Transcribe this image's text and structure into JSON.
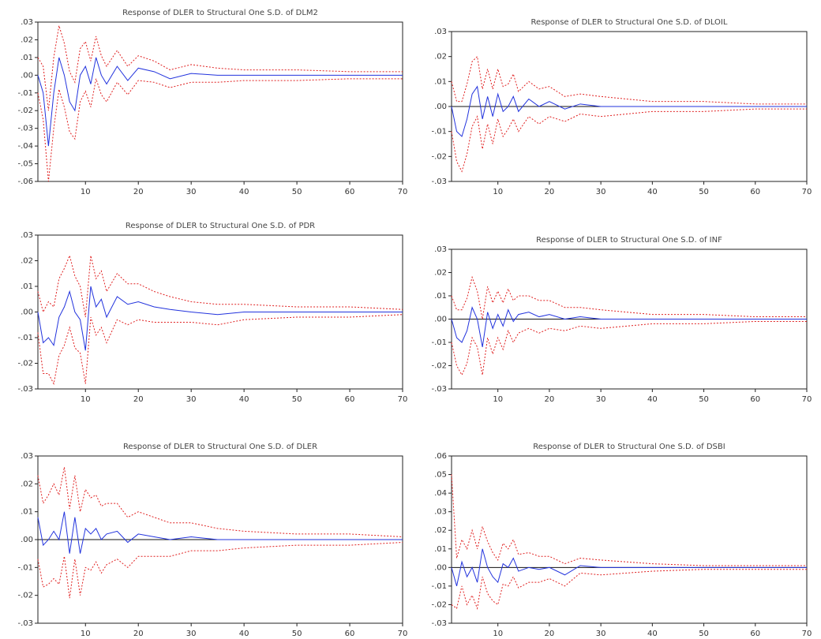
{
  "chart_data": [
    {
      "type": "line",
      "title": "Response of DLER to Structural One S.D. of DLM2",
      "zero_line": false,
      "x": [
        1,
        2,
        3,
        4,
        5,
        6,
        7,
        8,
        9,
        10,
        11,
        12,
        13,
        14,
        16,
        18,
        20,
        23,
        26,
        30,
        35,
        40,
        50,
        60,
        70
      ],
      "xlim": [
        1,
        70
      ],
      "xticks": [
        10,
        20,
        30,
        40,
        50,
        60,
        70
      ],
      "ylim": [
        -0.06,
        0.03
      ],
      "yticks": [
        {
          "value": 0.03,
          "label": ".03"
        },
        {
          "value": 0.02,
          "label": ".02"
        },
        {
          "value": 0.01,
          "label": ".01"
        },
        {
          "value": 0,
          "label": ".00"
        },
        {
          "value": -0.01,
          "label": "-.01"
        },
        {
          "value": -0.02,
          "label": "-.02"
        },
        {
          "value": -0.03,
          "label": "-.03"
        },
        {
          "value": -0.04,
          "label": "-.04"
        },
        {
          "value": -0.05,
          "label": "-.05"
        },
        {
          "value": -0.06,
          "label": "-.06"
        }
      ],
      "series": [
        {
          "color": "#2233dd",
          "dash": false,
          "values": [
            0.0,
            -0.01,
            -0.04,
            -0.01,
            0.01,
            0.0,
            -0.015,
            -0.02,
            0.0,
            0.005,
            -0.005,
            0.01,
            0.0,
            -0.005,
            0.005,
            -0.003,
            0.004,
            0.002,
            -0.002,
            0.001,
            0.0,
            0.0,
            0.0,
            0.0,
            0.0
          ]
        },
        {
          "color": "#e02020",
          "dash": true,
          "values": [
            0.01,
            0.005,
            -0.02,
            0.01,
            0.028,
            0.018,
            0.002,
            -0.004,
            0.015,
            0.019,
            0.008,
            0.022,
            0.011,
            0.005,
            0.014,
            0.005,
            0.011,
            0.008,
            0.003,
            0.006,
            0.004,
            0.003,
            0.003,
            0.002,
            0.002
          ]
        },
        {
          "color": "#e02020",
          "dash": true,
          "values": [
            -0.01,
            -0.025,
            -0.06,
            -0.03,
            -0.008,
            -0.018,
            -0.032,
            -0.036,
            -0.015,
            -0.009,
            -0.018,
            -0.002,
            -0.011,
            -0.015,
            -0.004,
            -0.011,
            -0.003,
            -0.004,
            -0.007,
            -0.004,
            -0.004,
            -0.003,
            -0.003,
            -0.002,
            -0.002
          ]
        }
      ]
    },
    {
      "type": "line",
      "title": "Response of DLER to Structural One S.D. of DLOIL",
      "zero_line": true,
      "x": [
        1,
        2,
        3,
        4,
        5,
        6,
        7,
        8,
        9,
        10,
        11,
        12,
        13,
        14,
        16,
        18,
        20,
        23,
        26,
        30,
        35,
        40,
        50,
        60,
        70
      ],
      "xlim": [
        1,
        70
      ],
      "xticks": [
        10,
        20,
        30,
        40,
        50,
        60,
        70
      ],
      "ylim": [
        -0.03,
        0.03
      ],
      "yticks": [
        {
          "value": 0.03,
          "label": ".03"
        },
        {
          "value": 0.02,
          "label": ".02"
        },
        {
          "value": 0.01,
          "label": ".01"
        },
        {
          "value": 0,
          "label": ".00"
        },
        {
          "value": -0.01,
          "label": "-.01"
        },
        {
          "value": -0.02,
          "label": "-.02"
        },
        {
          "value": -0.03,
          "label": "-.03"
        }
      ],
      "series": [
        {
          "color": "#2233dd",
          "dash": false,
          "values": [
            0.0,
            -0.01,
            -0.012,
            -0.005,
            0.005,
            0.008,
            -0.005,
            0.004,
            -0.004,
            0.005,
            -0.002,
            0.0,
            0.004,
            -0.002,
            0.003,
            0.0,
            0.002,
            -0.001,
            0.001,
            0.0,
            0.0,
            0.0,
            0.0,
            0.0,
            0.0
          ]
        },
        {
          "color": "#e02020",
          "dash": true,
          "values": [
            0.01,
            0.002,
            0.002,
            0.009,
            0.018,
            0.02,
            0.007,
            0.015,
            0.007,
            0.015,
            0.008,
            0.009,
            0.013,
            0.006,
            0.01,
            0.007,
            0.008,
            0.004,
            0.005,
            0.004,
            0.003,
            0.002,
            0.002,
            0.001,
            0.001
          ]
        },
        {
          "color": "#e02020",
          "dash": true,
          "values": [
            -0.01,
            -0.022,
            -0.026,
            -0.019,
            -0.008,
            -0.004,
            -0.017,
            -0.007,
            -0.015,
            -0.005,
            -0.012,
            -0.009,
            -0.005,
            -0.01,
            -0.004,
            -0.007,
            -0.004,
            -0.006,
            -0.003,
            -0.004,
            -0.003,
            -0.002,
            -0.002,
            -0.001,
            -0.001
          ]
        }
      ]
    },
    {
      "type": "line",
      "title": "Response of DLER to Structural One S.D. of PDR",
      "zero_line": false,
      "x": [
        1,
        2,
        3,
        4,
        5,
        6,
        7,
        8,
        9,
        10,
        11,
        12,
        13,
        14,
        16,
        18,
        20,
        23,
        26,
        30,
        35,
        40,
        50,
        60,
        70
      ],
      "xlim": [
        1,
        70
      ],
      "xticks": [
        10,
        20,
        30,
        40,
        50,
        60,
        70
      ],
      "ylim": [
        -0.03,
        0.03
      ],
      "yticks": [
        {
          "value": 0.03,
          "label": ".03"
        },
        {
          "value": 0.02,
          "label": ".02"
        },
        {
          "value": 0.01,
          "label": ".01"
        },
        {
          "value": 0,
          "label": ".00"
        },
        {
          "value": -0.01,
          "label": "-.01"
        },
        {
          "value": -0.02,
          "label": "-.02"
        },
        {
          "value": -0.03,
          "label": "-.03"
        }
      ],
      "series": [
        {
          "color": "#2233dd",
          "dash": false,
          "values": [
            0.0,
            -0.012,
            -0.01,
            -0.013,
            -0.002,
            0.002,
            0.008,
            0.0,
            -0.003,
            -0.015,
            0.01,
            0.002,
            0.005,
            -0.002,
            0.006,
            0.003,
            0.004,
            0.002,
            0.001,
            0.0,
            -0.001,
            0.0,
            0.0,
            0.0,
            0.0
          ]
        },
        {
          "color": "#e02020",
          "dash": true,
          "values": [
            0.008,
            0.0,
            0.004,
            0.002,
            0.013,
            0.017,
            0.022,
            0.014,
            0.01,
            -0.002,
            0.022,
            0.013,
            0.016,
            0.008,
            0.015,
            0.011,
            0.011,
            0.008,
            0.006,
            0.004,
            0.003,
            0.003,
            0.002,
            0.002,
            0.001
          ]
        },
        {
          "color": "#e02020",
          "dash": true,
          "values": [
            -0.008,
            -0.024,
            -0.024,
            -0.028,
            -0.017,
            -0.013,
            -0.006,
            -0.014,
            -0.016,
            -0.028,
            -0.002,
            -0.009,
            -0.006,
            -0.012,
            -0.003,
            -0.005,
            -0.003,
            -0.004,
            -0.004,
            -0.004,
            -0.005,
            -0.003,
            -0.002,
            -0.002,
            -0.001
          ]
        }
      ]
    },
    {
      "type": "line",
      "title": "Response of DLER to Structural One S.D. of INF",
      "zero_line": true,
      "x": [
        1,
        2,
        3,
        4,
        5,
        6,
        7,
        8,
        9,
        10,
        11,
        12,
        13,
        14,
        16,
        18,
        20,
        23,
        26,
        30,
        35,
        40,
        50,
        60,
        70
      ],
      "xlim": [
        1,
        70
      ],
      "xticks": [
        10,
        20,
        30,
        40,
        50,
        60,
        70
      ],
      "ylim": [
        -0.03,
        0.03
      ],
      "yticks": [
        {
          "value": 0.03,
          "label": ".03"
        },
        {
          "value": 0.02,
          "label": ".02"
        },
        {
          "value": 0.01,
          "label": ".01"
        },
        {
          "value": 0,
          "label": ".00"
        },
        {
          "value": -0.01,
          "label": "-.01"
        },
        {
          "value": -0.02,
          "label": "-.02"
        },
        {
          "value": -0.03,
          "label": "-.03"
        }
      ],
      "series": [
        {
          "color": "#2233dd",
          "dash": false,
          "values": [
            0.0,
            -0.008,
            -0.01,
            -0.005,
            0.005,
            0.0,
            -0.012,
            0.003,
            -0.004,
            0.002,
            -0.003,
            0.004,
            -0.001,
            0.002,
            0.003,
            0.001,
            0.002,
            0.0,
            0.001,
            0.0,
            0.0,
            0.0,
            0.0,
            0.0,
            0.0
          ]
        },
        {
          "color": "#e02020",
          "dash": true,
          "values": [
            0.01,
            0.004,
            0.004,
            0.009,
            0.018,
            0.012,
            0.0,
            0.014,
            0.007,
            0.012,
            0.007,
            0.013,
            0.008,
            0.01,
            0.01,
            0.008,
            0.008,
            0.005,
            0.005,
            0.004,
            0.003,
            0.002,
            0.002,
            0.001,
            0.001
          ]
        },
        {
          "color": "#e02020",
          "dash": true,
          "values": [
            -0.01,
            -0.02,
            -0.024,
            -0.019,
            -0.008,
            -0.012,
            -0.024,
            -0.008,
            -0.015,
            -0.008,
            -0.013,
            -0.005,
            -0.01,
            -0.006,
            -0.004,
            -0.006,
            -0.004,
            -0.005,
            -0.003,
            -0.004,
            -0.003,
            -0.002,
            -0.002,
            -0.001,
            -0.001
          ]
        }
      ]
    },
    {
      "type": "line",
      "title": "Response of DLER to Structural One S.D. of DLER",
      "zero_line": true,
      "x": [
        1,
        2,
        3,
        4,
        5,
        6,
        7,
        8,
        9,
        10,
        11,
        12,
        13,
        14,
        16,
        18,
        20,
        23,
        26,
        30,
        35,
        40,
        50,
        60,
        70
      ],
      "xlim": [
        1,
        70
      ],
      "xticks": [
        10,
        20,
        30,
        40,
        50,
        60,
        70
      ],
      "ylim": [
        -0.03,
        0.03
      ],
      "yticks": [
        {
          "value": 0.03,
          "label": ".03"
        },
        {
          "value": 0.02,
          "label": ".02"
        },
        {
          "value": 0.01,
          "label": ".01"
        },
        {
          "value": 0,
          "label": ".00"
        },
        {
          "value": -0.01,
          "label": "-.01"
        },
        {
          "value": -0.02,
          "label": "-.02"
        },
        {
          "value": -0.03,
          "label": "-.03"
        }
      ],
      "series": [
        {
          "color": "#2233dd",
          "dash": false,
          "values": [
            0.008,
            -0.002,
            0.0,
            0.003,
            0.0,
            0.01,
            -0.005,
            0.008,
            -0.005,
            0.004,
            0.002,
            0.004,
            0.0,
            0.002,
            0.003,
            -0.001,
            0.002,
            0.001,
            0.0,
            0.001,
            0.0,
            0.0,
            0.0,
            0.0,
            0.0
          ]
        },
        {
          "color": "#e02020",
          "dash": true,
          "values": [
            0.023,
            0.013,
            0.016,
            0.02,
            0.016,
            0.026,
            0.011,
            0.023,
            0.01,
            0.018,
            0.015,
            0.016,
            0.012,
            0.013,
            0.013,
            0.008,
            0.01,
            0.008,
            0.006,
            0.006,
            0.004,
            0.003,
            0.002,
            0.002,
            0.001
          ]
        },
        {
          "color": "#e02020",
          "dash": true,
          "values": [
            -0.007,
            -0.017,
            -0.016,
            -0.014,
            -0.016,
            -0.006,
            -0.021,
            -0.007,
            -0.02,
            -0.01,
            -0.011,
            -0.008,
            -0.012,
            -0.009,
            -0.007,
            -0.01,
            -0.006,
            -0.006,
            -0.006,
            -0.004,
            -0.004,
            -0.003,
            -0.002,
            -0.002,
            -0.001
          ]
        }
      ]
    },
    {
      "type": "line",
      "title": "Response of DLER to Structural One S.D. of DSBI",
      "zero_line": true,
      "x": [
        1,
        2,
        3,
        4,
        5,
        6,
        7,
        8,
        9,
        10,
        11,
        12,
        13,
        14,
        16,
        18,
        20,
        23,
        26,
        30,
        35,
        40,
        50,
        60,
        70
      ],
      "xlim": [
        1,
        70
      ],
      "xticks": [
        10,
        20,
        30,
        40,
        50,
        60,
        70
      ],
      "ylim": [
        -0.03,
        0.06
      ],
      "yticks": [
        {
          "value": 0.06,
          "label": ".06"
        },
        {
          "value": 0.05,
          "label": ".05"
        },
        {
          "value": 0.04,
          "label": ".04"
        },
        {
          "value": 0.03,
          "label": ".03"
        },
        {
          "value": 0.02,
          "label": ".02"
        },
        {
          "value": 0.01,
          "label": ".01"
        },
        {
          "value": 0,
          "label": ".00"
        },
        {
          "value": -0.01,
          "label": "-.01"
        },
        {
          "value": -0.02,
          "label": "-.02"
        },
        {
          "value": -0.03,
          "label": "-.03"
        }
      ],
      "series": [
        {
          "color": "#2233dd",
          "dash": false,
          "values": [
            0.0,
            -0.01,
            0.003,
            -0.005,
            0.0,
            -0.008,
            0.01,
            0.0,
            -0.005,
            -0.008,
            0.002,
            0.0,
            0.005,
            -0.002,
            0.0,
            -0.001,
            0.0,
            -0.004,
            0.001,
            0.0,
            0.0,
            0.0,
            0.0,
            0.0,
            0.0
          ]
        },
        {
          "color": "#e02020",
          "dash": true,
          "values": [
            0.05,
            0.005,
            0.015,
            0.01,
            0.02,
            0.01,
            0.022,
            0.014,
            0.008,
            0.004,
            0.013,
            0.01,
            0.015,
            0.007,
            0.008,
            0.006,
            0.006,
            0.002,
            0.005,
            0.004,
            0.003,
            0.002,
            0.001,
            0.001,
            0.001
          ]
        },
        {
          "color": "#e02020",
          "dash": true,
          "values": [
            -0.02,
            -0.022,
            -0.01,
            -0.02,
            -0.015,
            -0.022,
            -0.005,
            -0.014,
            -0.018,
            -0.02,
            -0.009,
            -0.01,
            -0.005,
            -0.011,
            -0.008,
            -0.008,
            -0.006,
            -0.01,
            -0.003,
            -0.004,
            -0.003,
            -0.002,
            -0.001,
            -0.001,
            -0.001
          ]
        }
      ]
    }
  ]
}
